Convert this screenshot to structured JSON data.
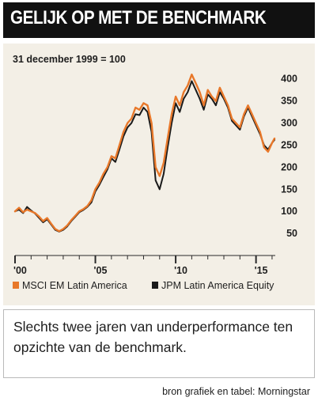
{
  "header": {
    "title": "GELIJK OP MET DE BENCHMARK"
  },
  "caption": {
    "text": "Slechts twee jaren van underperformance ten opzichte van de benchmark."
  },
  "footer": {
    "source": "bron grafiek en tabel: Morningstar"
  },
  "colors": {
    "msci": "#e8782a",
    "jpm": "#1a1a1a",
    "panel": "#f3efe6",
    "title_bg": "#111111"
  },
  "chart_data": {
    "type": "line",
    "note": "31 december 1999 = 100",
    "xlabel": "",
    "ylabel": "",
    "xlim": [
      2000,
      2016.2
    ],
    "ylim": [
      0,
      430
    ],
    "ytick_values": [
      50,
      100,
      150,
      200,
      250,
      300,
      350,
      400
    ],
    "ytick_labels": [
      "50",
      "100",
      "150",
      "200",
      "250",
      "300",
      "350",
      "400"
    ],
    "xtick_values": [
      2000,
      2005,
      2010,
      2015
    ],
    "xtick_labels": [
      "'00",
      "'05",
      "'10",
      "'15"
    ],
    "grid": false,
    "legend_position": "bottom",
    "series": [
      {
        "name": "MSCI EM Latin America",
        "color": "#e8782a",
        "x": [
          2000,
          2000.25,
          2000.5,
          2000.75,
          2001,
          2001.25,
          2001.5,
          2001.75,
          2002,
          2002.25,
          2002.5,
          2002.75,
          2003,
          2003.25,
          2003.5,
          2003.75,
          2004,
          2004.25,
          2004.5,
          2004.75,
          2005,
          2005.25,
          2005.5,
          2005.75,
          2006,
          2006.25,
          2006.5,
          2006.75,
          2007,
          2007.25,
          2007.5,
          2007.75,
          2008,
          2008.25,
          2008.5,
          2008.75,
          2009,
          2009.25,
          2009.5,
          2009.75,
          2010,
          2010.25,
          2010.5,
          2010.75,
          2011,
          2011.25,
          2011.5,
          2011.75,
          2012,
          2012.25,
          2012.5,
          2012.75,
          2013,
          2013.25,
          2013.5,
          2013.75,
          2014,
          2014.25,
          2014.5,
          2014.75,
          2015,
          2015.25,
          2015.5,
          2015.75,
          2016,
          2016.15
        ],
        "values": [
          100,
          108,
          98,
          104,
          100,
          96,
          88,
          78,
          85,
          72,
          60,
          55,
          60,
          68,
          80,
          90,
          100,
          105,
          112,
          125,
          150,
          165,
          185,
          200,
          225,
          220,
          250,
          280,
          300,
          310,
          335,
          330,
          345,
          340,
          300,
          200,
          180,
          210,
          265,
          320,
          360,
          340,
          370,
          385,
          410,
          390,
          370,
          340,
          375,
          360,
          350,
          380,
          360,
          340,
          310,
          300,
          290,
          320,
          340,
          320,
          300,
          280,
          245,
          235,
          255,
          265
        ]
      },
      {
        "name": "JPM Latin America Equity",
        "color": "#1a1a1a",
        "x": [
          2000,
          2000.25,
          2000.5,
          2000.75,
          2001,
          2001.25,
          2001.5,
          2001.75,
          2002,
          2002.25,
          2002.5,
          2002.75,
          2003,
          2003.25,
          2003.5,
          2003.75,
          2004,
          2004.25,
          2004.5,
          2004.75,
          2005,
          2005.25,
          2005.5,
          2005.75,
          2006,
          2006.25,
          2006.5,
          2006.75,
          2007,
          2007.25,
          2007.5,
          2007.75,
          2008,
          2008.25,
          2008.5,
          2008.75,
          2009,
          2009.25,
          2009.5,
          2009.75,
          2010,
          2010.25,
          2010.5,
          2010.75,
          2011,
          2011.25,
          2011.5,
          2011.75,
          2012,
          2012.25,
          2012.5,
          2012.75,
          2013,
          2013.25,
          2013.5,
          2013.75,
          2014,
          2014.25,
          2014.5,
          2014.75,
          2015,
          2015.25,
          2015.5,
          2015.75,
          2016,
          2016.15
        ],
        "values": [
          100,
          104,
          96,
          110,
          102,
          95,
          85,
          75,
          82,
          70,
          58,
          54,
          58,
          66,
          78,
          88,
          98,
          103,
          110,
          120,
          145,
          160,
          178,
          195,
          220,
          212,
          240,
          270,
          290,
          300,
          320,
          318,
          335,
          325,
          280,
          170,
          150,
          185,
          245,
          300,
          345,
          325,
          355,
          370,
          395,
          375,
          355,
          330,
          365,
          355,
          340,
          370,
          355,
          335,
          305,
          295,
          285,
          315,
          335,
          315,
          295,
          275,
          250,
          240,
          255,
          262
        ]
      }
    ]
  }
}
